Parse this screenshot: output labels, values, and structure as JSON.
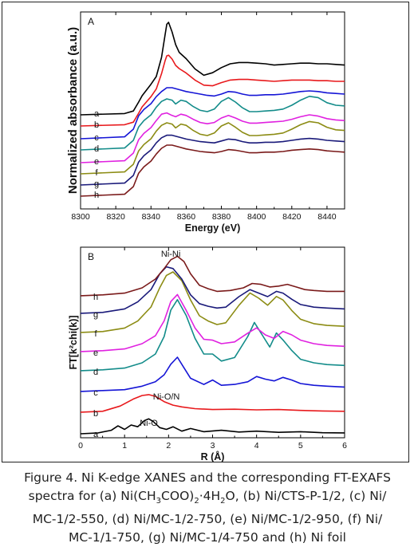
{
  "chart_data": [
    {
      "type": "line",
      "panel_label": "A",
      "xlabel": "Energy (eV)",
      "ylabel": "Normalized absorbance (a.u.)",
      "xlim": [
        8300,
        8450
      ],
      "xticks": [
        8300,
        8320,
        8340,
        8360,
        8380,
        8400,
        8420,
        8440
      ],
      "grid": false,
      "series": [
        {
          "name": "a",
          "color": "#000000",
          "x": [
            8300,
            8325,
            8330,
            8333,
            8335,
            8340,
            8343,
            8346,
            8348,
            8349,
            8350,
            8352,
            8354,
            8356,
            8360,
            8365,
            8370,
            8375,
            8380,
            8385,
            8390,
            8395,
            8400,
            8405,
            8410,
            8415,
            8420,
            8425,
            8430,
            8435,
            8440,
            8445,
            8450
          ],
          "y": [
            0.0,
            0.02,
            0.06,
            0.2,
            0.3,
            0.48,
            0.6,
            0.9,
            1.25,
            1.42,
            1.45,
            1.3,
            1.1,
            0.98,
            0.88,
            0.72,
            0.62,
            0.66,
            0.74,
            0.8,
            0.82,
            0.82,
            0.81,
            0.8,
            0.78,
            0.79,
            0.8,
            0.81,
            0.81,
            0.8,
            0.8,
            0.79,
            0.78
          ]
        },
        {
          "name": "b",
          "color": "#e8191c",
          "x": [
            8300,
            8325,
            8330,
            8333,
            8335,
            8340,
            8343,
            8346,
            8348,
            8349,
            8350,
            8352,
            8354,
            8356,
            8360,
            8365,
            8370,
            8375,
            8380,
            8385,
            8390,
            8395,
            8400,
            8405,
            8410,
            8415,
            8420,
            8425,
            8430,
            8435,
            8440,
            8445,
            8450
          ],
          "y": [
            0.0,
            0.02,
            0.06,
            0.2,
            0.3,
            0.46,
            0.58,
            0.82,
            1.02,
            1.1,
            1.11,
            1.05,
            0.95,
            0.9,
            0.83,
            0.72,
            0.64,
            0.63,
            0.68,
            0.72,
            0.73,
            0.73,
            0.72,
            0.71,
            0.7,
            0.71,
            0.72,
            0.72,
            0.72,
            0.71,
            0.71,
            0.7,
            0.7
          ]
        },
        {
          "name": "c",
          "color": "#1515d6",
          "x": [
            8300,
            8325,
            8330,
            8333,
            8336,
            8340,
            8343,
            8346,
            8349,
            8352,
            8356,
            8360,
            8364,
            8368,
            8372,
            8376,
            8380,
            8384,
            8388,
            8392,
            8396,
            8400,
            8405,
            8410,
            8415,
            8420,
            8425,
            8430,
            8435,
            8440,
            8445,
            8450
          ],
          "y": [
            0.0,
            0.03,
            0.15,
            0.36,
            0.46,
            0.55,
            0.66,
            0.74,
            0.8,
            0.8,
            0.77,
            0.74,
            0.72,
            0.7,
            0.68,
            0.67,
            0.7,
            0.74,
            0.73,
            0.7,
            0.68,
            0.68,
            0.69,
            0.69,
            0.7,
            0.72,
            0.74,
            0.75,
            0.74,
            0.72,
            0.71,
            0.7
          ]
        },
        {
          "name": "d",
          "color": "#138c8a",
          "x": [
            8300,
            8325,
            8330,
            8333,
            8336,
            8340,
            8343,
            8346,
            8349,
            8352,
            8354,
            8357,
            8360,
            8364,
            8368,
            8372,
            8376,
            8380,
            8384,
            8388,
            8392,
            8396,
            8400,
            8405,
            8410,
            8415,
            8420,
            8425,
            8430,
            8435,
            8440,
            8445,
            8450
          ],
          "y": [
            0.0,
            0.03,
            0.15,
            0.36,
            0.46,
            0.55,
            0.67,
            0.76,
            0.8,
            0.78,
            0.72,
            0.78,
            0.76,
            0.68,
            0.62,
            0.6,
            0.64,
            0.76,
            0.82,
            0.75,
            0.66,
            0.6,
            0.6,
            0.61,
            0.62,
            0.64,
            0.7,
            0.78,
            0.84,
            0.82,
            0.74,
            0.7,
            0.69
          ]
        },
        {
          "name": "e",
          "color": "#e021e0",
          "x": [
            8300,
            8325,
            8330,
            8333,
            8336,
            8340,
            8343,
            8346,
            8349,
            8352,
            8354,
            8357,
            8360,
            8364,
            8368,
            8372,
            8376,
            8380,
            8384,
            8388,
            8392,
            8396,
            8400,
            8405,
            8410,
            8415,
            8420,
            8425,
            8430,
            8435,
            8440,
            8445,
            8450
          ],
          "y": [
            0.0,
            0.03,
            0.15,
            0.36,
            0.46,
            0.55,
            0.66,
            0.76,
            0.78,
            0.74,
            0.72,
            0.76,
            0.74,
            0.68,
            0.63,
            0.61,
            0.63,
            0.7,
            0.74,
            0.7,
            0.65,
            0.62,
            0.62,
            0.63,
            0.64,
            0.65,
            0.68,
            0.72,
            0.75,
            0.73,
            0.69,
            0.67,
            0.66
          ]
        },
        {
          "name": "f",
          "color": "#8c8c14",
          "x": [
            8300,
            8325,
            8330,
            8333,
            8336,
            8340,
            8343,
            8346,
            8349,
            8352,
            8354,
            8357,
            8360,
            8364,
            8368,
            8372,
            8376,
            8380,
            8384,
            8388,
            8392,
            8396,
            8400,
            8405,
            8410,
            8415,
            8420,
            8425,
            8430,
            8435,
            8440,
            8445,
            8450
          ],
          "y": [
            0.0,
            0.03,
            0.15,
            0.36,
            0.46,
            0.55,
            0.67,
            0.76,
            0.8,
            0.78,
            0.72,
            0.78,
            0.76,
            0.68,
            0.62,
            0.6,
            0.64,
            0.75,
            0.8,
            0.73,
            0.65,
            0.6,
            0.6,
            0.61,
            0.62,
            0.64,
            0.7,
            0.77,
            0.82,
            0.8,
            0.73,
            0.69,
            0.68
          ]
        },
        {
          "name": "g",
          "color": "#1a1a7a",
          "x": [
            8300,
            8325,
            8330,
            8333,
            8336,
            8340,
            8343,
            8346,
            8349,
            8352,
            8356,
            8360,
            8364,
            8368,
            8372,
            8376,
            8380,
            8384,
            8388,
            8392,
            8396,
            8400,
            8405,
            8410,
            8415,
            8420,
            8425,
            8430,
            8435,
            8440,
            8445,
            8450
          ],
          "y": [
            0.0,
            0.03,
            0.15,
            0.36,
            0.46,
            0.55,
            0.66,
            0.74,
            0.78,
            0.78,
            0.75,
            0.72,
            0.7,
            0.68,
            0.67,
            0.66,
            0.69,
            0.72,
            0.71,
            0.68,
            0.66,
            0.66,
            0.67,
            0.67,
            0.68,
            0.7,
            0.72,
            0.73,
            0.72,
            0.7,
            0.69,
            0.68
          ]
        },
        {
          "name": "h",
          "color": "#7a1a1a",
          "x": [
            8300,
            8325,
            8330,
            8333,
            8336,
            8340,
            8343,
            8346,
            8349,
            8352,
            8356,
            8360,
            8364,
            8368,
            8372,
            8376,
            8380,
            8384,
            8388,
            8392,
            8396,
            8400,
            8405,
            8410,
            8415,
            8420,
            8425,
            8430,
            8435,
            8440,
            8445,
            8450
          ],
          "y": [
            0.0,
            0.03,
            0.15,
            0.36,
            0.46,
            0.55,
            0.66,
            0.75,
            0.8,
            0.8,
            0.77,
            0.74,
            0.72,
            0.7,
            0.69,
            0.68,
            0.7,
            0.73,
            0.72,
            0.7,
            0.68,
            0.68,
            0.69,
            0.69,
            0.7,
            0.72,
            0.73,
            0.74,
            0.73,
            0.71,
            0.7,
            0.69
          ]
        }
      ]
    },
    {
      "type": "line",
      "panel_label": "B",
      "xlabel": "R (Å)",
      "ylabel": "FT[k²chi(k)]",
      "xlim": [
        0,
        6
      ],
      "xticks": [
        0,
        1,
        2,
        3,
        4,
        5,
        6
      ],
      "grid": false,
      "annotations": [
        "Ni-Ni",
        "Ni-O/N",
        "Ni-O"
      ],
      "series": [
        {
          "name": "a",
          "color": "#000000",
          "x": [
            0,
            0.4,
            0.7,
            0.85,
            1.0,
            1.15,
            1.3,
            1.45,
            1.55,
            1.65,
            1.8,
            1.95,
            2.1,
            2.3,
            2.5,
            2.8,
            3.2,
            3.6,
            4.0,
            4.5,
            5.0,
            5.5,
            6.0
          ],
          "y": [
            0.0,
            0.05,
            0.2,
            0.45,
            0.25,
            0.5,
            0.4,
            0.75,
            0.85,
            0.7,
            0.35,
            0.25,
            0.4,
            0.15,
            0.3,
            0.12,
            0.2,
            0.1,
            0.15,
            0.08,
            0.12,
            0.06,
            0.05
          ]
        },
        {
          "name": "b",
          "color": "#e8191c",
          "x": [
            0,
            0.5,
            0.9,
            1.2,
            1.4,
            1.55,
            1.7,
            1.9,
            2.1,
            2.3,
            2.6,
            3.0,
            3.5,
            4.0,
            4.5,
            5.0,
            5.5,
            6.0
          ],
          "y": [
            0.05,
            0.1,
            0.4,
            0.8,
            1.0,
            1.05,
            0.95,
            0.65,
            0.45,
            0.35,
            0.25,
            0.2,
            0.22,
            0.18,
            0.2,
            0.15,
            0.12,
            0.1
          ]
        },
        {
          "name": "c",
          "color": "#1515d6",
          "x": [
            0,
            0.5,
            1.0,
            1.4,
            1.7,
            1.9,
            2.05,
            2.2,
            2.35,
            2.5,
            2.8,
            3.0,
            3.2,
            3.5,
            3.8,
            4.0,
            4.2,
            4.4,
            4.6,
            4.8,
            5.0,
            5.3,
            5.6,
            6.0
          ],
          "y": [
            0.05,
            0.1,
            0.15,
            0.35,
            0.6,
            1.0,
            1.6,
            2.0,
            1.4,
            0.8,
            0.45,
            0.7,
            0.4,
            0.45,
            0.6,
            0.9,
            0.75,
            0.65,
            0.85,
            0.7,
            0.5,
            0.4,
            0.35,
            0.3
          ]
        },
        {
          "name": "d",
          "color": "#138c8a",
          "x": [
            0,
            0.5,
            1.0,
            1.4,
            1.7,
            1.9,
            2.05,
            2.2,
            2.4,
            2.6,
            2.8,
            3.0,
            3.2,
            3.5,
            3.8,
            3.95,
            4.15,
            4.3,
            4.45,
            4.6,
            4.8,
            5.0,
            5.3,
            5.6,
            6.0
          ],
          "y": [
            0.05,
            0.1,
            0.2,
            0.5,
            1.0,
            2.0,
            3.5,
            4.1,
            3.2,
            1.9,
            1.0,
            1.0,
            0.6,
            0.8,
            2.0,
            2.8,
            2.0,
            1.4,
            2.2,
            1.8,
            1.2,
            0.7,
            0.5,
            0.4,
            0.35
          ]
        },
        {
          "name": "e",
          "color": "#e021e0",
          "x": [
            0,
            0.5,
            1.0,
            1.4,
            1.7,
            1.9,
            2.05,
            2.2,
            2.4,
            2.6,
            2.8,
            3.0,
            3.2,
            3.5,
            3.8,
            4.0,
            4.2,
            4.4,
            4.6,
            4.8,
            5.0,
            5.3,
            5.6,
            6.0
          ],
          "y": [
            0.05,
            0.1,
            0.2,
            0.5,
            0.95,
            1.8,
            2.9,
            3.3,
            2.4,
            1.4,
            0.75,
            0.7,
            0.5,
            0.6,
            1.1,
            1.4,
            1.0,
            0.8,
            1.2,
            1.0,
            0.7,
            0.5,
            0.4,
            0.35
          ]
        },
        {
          "name": "f",
          "color": "#8c8c14",
          "x": [
            0,
            0.5,
            1.0,
            1.3,
            1.6,
            1.8,
            1.95,
            2.1,
            2.3,
            2.5,
            2.7,
            2.9,
            3.1,
            3.3,
            3.6,
            3.85,
            4.05,
            4.25,
            4.45,
            4.6,
            4.8,
            5.0,
            5.3,
            5.6,
            6.0
          ],
          "y": [
            0.05,
            0.1,
            0.3,
            0.7,
            1.5,
            2.6,
            3.3,
            3.5,
            3.0,
            1.9,
            1.0,
            0.7,
            0.5,
            0.6,
            1.6,
            2.3,
            2.0,
            1.6,
            2.1,
            1.9,
            1.3,
            0.8,
            0.55,
            0.45,
            0.4
          ]
        },
        {
          "name": "g",
          "color": "#1a1a7a",
          "x": [
            0,
            0.5,
            1.0,
            1.3,
            1.6,
            1.8,
            1.95,
            2.1,
            2.3,
            2.5,
            2.7,
            2.9,
            3.1,
            3.3,
            3.6,
            3.85,
            4.05,
            4.25,
            4.45,
            4.6,
            4.8,
            5.0,
            5.3,
            5.6,
            6.0
          ],
          "y": [
            0.05,
            0.1,
            0.3,
            0.7,
            1.4,
            2.3,
            2.7,
            2.6,
            2.0,
            1.1,
            0.6,
            0.45,
            0.35,
            0.4,
            1.0,
            1.4,
            1.2,
            1.0,
            1.3,
            1.2,
            0.85,
            0.55,
            0.4,
            0.35,
            0.3
          ]
        },
        {
          "name": "h",
          "color": "#7a1a1a",
          "x": [
            0,
            0.5,
            1.0,
            1.4,
            1.7,
            1.9,
            2.05,
            2.2,
            2.35,
            2.5,
            2.7,
            2.9,
            3.1,
            3.4,
            3.7,
            3.9,
            4.1,
            4.3,
            4.5,
            4.7,
            4.9,
            5.1,
            5.3,
            5.6,
            6.0
          ],
          "y": [
            0.05,
            0.1,
            0.2,
            0.5,
            1.0,
            1.6,
            2.1,
            2.3,
            2.0,
            1.3,
            0.65,
            0.45,
            0.3,
            0.35,
            0.5,
            0.75,
            0.7,
            0.55,
            0.6,
            0.7,
            0.55,
            0.4,
            0.35,
            0.3,
            0.3
          ]
        }
      ]
    }
  ],
  "caption": {
    "line1": "Figure 4. Ni K-edge XANES and the corresponding FT-EXAFS",
    "line2_prefix": "spectra for (a) Ni(CH",
    "sub_3": "3",
    "line2_mid1": "COO)",
    "sub_2a": "2",
    "line2_mid2": "·4H",
    "sub_2b": "2",
    "line2_suffix": "O, (b) Ni/CTS-P-1/2, (c) Ni/",
    "line3": "MC-1/2-550, (d) Ni/MC-1/2-750, (e) Ni/MC-1/2-950, (f) Ni/",
    "line4": "MC-1/1-750, (g) Ni/MC-1/4-750 and (h) Ni foil"
  }
}
